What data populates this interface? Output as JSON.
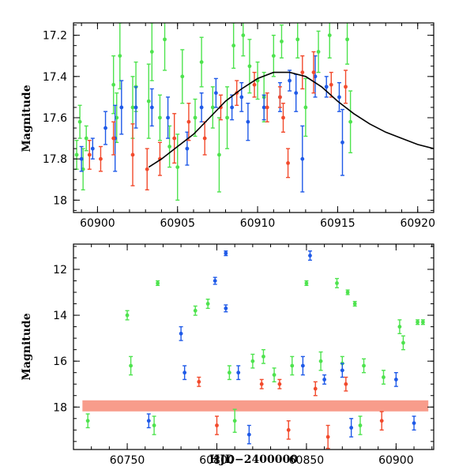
{
  "chart_data": [
    {
      "type": "scatter",
      "title": "",
      "xlabel": "",
      "ylabel": "Magnitude",
      "xlim": [
        60898.5,
        60921
      ],
      "ylim": [
        18.06,
        17.14
      ],
      "y_inverted": true,
      "grid": false,
      "x_ticks": [
        "60900",
        "60905",
        "60910",
        "60915",
        "60920"
      ],
      "y_ticks": [
        "17.2",
        "17.4",
        "17.6",
        "17.8",
        "18"
      ],
      "colors": {
        "green": "#4ee34e",
        "blue": "#1f5ae8",
        "red": "#f24a2c",
        "fit": "#000000"
      },
      "series": [
        {
          "color": "green",
          "points": [
            [
              60898.7,
              17.78,
              0.07
            ],
            [
              60898.9,
              17.62,
              0.08
            ],
            [
              60899.1,
              17.85,
              0.1
            ],
            [
              60899.3,
              17.7,
              0.06
            ],
            [
              60901.0,
              17.44,
              0.14
            ],
            [
              60901.2,
              17.6,
              0.12
            ],
            [
              60901.4,
              17.3,
              0.16
            ],
            [
              60902.2,
              17.55,
              0.15
            ],
            [
              60902.4,
              17.45,
              0.12
            ],
            [
              60903.2,
              17.52,
              0.18
            ],
            [
              60903.4,
              17.28,
              0.14
            ],
            [
              60903.9,
              17.6,
              0.11
            ],
            [
              60904.2,
              17.22,
              0.15
            ],
            [
              60904.5,
              17.74,
              0.1
            ],
            [
              60905.0,
              17.84,
              0.16
            ],
            [
              60905.3,
              17.4,
              0.13
            ],
            [
              60906.1,
              17.6,
              0.09
            ],
            [
              60906.5,
              17.33,
              0.12
            ],
            [
              60907.2,
              17.55,
              0.1
            ],
            [
              60907.6,
              17.78,
              0.18
            ],
            [
              60908.1,
              17.6,
              0.15
            ],
            [
              60908.5,
              17.25,
              0.11
            ],
            [
              60909.1,
              17.2,
              0.1
            ],
            [
              60909.5,
              17.35,
              0.13
            ],
            [
              60910.0,
              17.42,
              0.09
            ],
            [
              60910.4,
              17.5,
              0.12
            ],
            [
              60911.0,
              17.3,
              0.1
            ],
            [
              60911.5,
              17.23,
              0.08
            ],
            [
              60912.5,
              17.22,
              0.09
            ],
            [
              60913.0,
              17.55,
              0.14
            ],
            [
              60913.8,
              17.28,
              0.1
            ],
            [
              60914.5,
              17.2,
              0.11
            ],
            [
              60915.6,
              17.22,
              0.12
            ],
            [
              60915.8,
              17.62,
              0.15
            ]
          ]
        },
        {
          "color": "blue",
          "points": [
            [
              60899.0,
              17.8,
              0.06
            ],
            [
              60899.7,
              17.75,
              0.05
            ],
            [
              60900.5,
              17.65,
              0.08
            ],
            [
              60901.1,
              17.7,
              0.16
            ],
            [
              60901.5,
              17.55,
              0.13
            ],
            [
              60902.4,
              17.55,
              0.1
            ],
            [
              60903.4,
              17.55,
              0.09
            ],
            [
              60904.4,
              17.6,
              0.1
            ],
            [
              60905.6,
              17.75,
              0.08
            ],
            [
              60906.5,
              17.55,
              0.07
            ],
            [
              60907.4,
              17.48,
              0.07
            ],
            [
              60908.4,
              17.55,
              0.06
            ],
            [
              60909.0,
              17.5,
              0.07
            ],
            [
              60909.4,
              17.62,
              0.09
            ],
            [
              60910.4,
              17.55,
              0.06
            ],
            [
              60911.4,
              17.5,
              0.07
            ],
            [
              60912.0,
              17.42,
              0.05
            ],
            [
              60912.4,
              17.48,
              0.09
            ],
            [
              60912.8,
              17.8,
              0.16
            ],
            [
              60913.6,
              17.4,
              0.1
            ],
            [
              60914.3,
              17.45,
              0.05
            ],
            [
              60915.1,
              17.5,
              0.07
            ],
            [
              60915.3,
              17.72,
              0.16
            ]
          ]
        },
        {
          "color": "red",
          "points": [
            [
              60899.5,
              17.78,
              0.07
            ],
            [
              60900.2,
              17.8,
              0.06
            ],
            [
              60901.0,
              17.7,
              0.08
            ],
            [
              60902.2,
              17.78,
              0.15
            ],
            [
              60903.1,
              17.85,
              0.1
            ],
            [
              60903.9,
              17.8,
              0.08
            ],
            [
              60904.8,
              17.7,
              0.12
            ],
            [
              60905.7,
              17.62,
              0.09
            ],
            [
              60906.7,
              17.7,
              0.08
            ],
            [
              60907.7,
              17.55,
              0.06
            ],
            [
              60908.7,
              17.48,
              0.06
            ],
            [
              60909.8,
              17.44,
              0.06
            ],
            [
              60910.6,
              17.55,
              0.07
            ],
            [
              60911.4,
              17.5,
              0.05
            ],
            [
              60911.6,
              17.6,
              0.07
            ],
            [
              60911.9,
              17.82,
              0.07
            ],
            [
              60912.8,
              17.38,
              0.08
            ],
            [
              60913.5,
              17.38,
              0.1
            ],
            [
              60914.6,
              17.44,
              0.06
            ],
            [
              60915.5,
              17.45,
              0.08
            ]
          ]
        }
      ],
      "fit_curve": [
        [
          60903.2,
          17.84
        ],
        [
          60904,
          17.8
        ],
        [
          60905,
          17.74
        ],
        [
          60906,
          17.68
        ],
        [
          60907,
          17.6
        ],
        [
          60908,
          17.52
        ],
        [
          60909,
          17.46
        ],
        [
          60910,
          17.41
        ],
        [
          60911,
          17.38
        ],
        [
          60912,
          17.38
        ],
        [
          60913,
          17.4
        ],
        [
          60914,
          17.45
        ],
        [
          60915,
          17.52
        ],
        [
          60916,
          17.58
        ],
        [
          60917,
          17.63
        ],
        [
          60918,
          17.67
        ],
        [
          60919,
          17.7
        ],
        [
          60920,
          17.73
        ],
        [
          60921,
          17.75
        ]
      ]
    },
    {
      "type": "scatter",
      "title": "",
      "xlabel": "HJD−2400000",
      "ylabel": "Magnitude",
      "xlim": [
        60720,
        60921
      ],
      "ylim": [
        19.85,
        10.9
      ],
      "y_inverted": true,
      "grid": false,
      "x_ticks": [
        "60750",
        "60800",
        "60850",
        "60900"
      ],
      "y_ticks": [
        "12",
        "14",
        "16",
        "18"
      ],
      "colors": {
        "green": "#4ee34e",
        "blue": "#1f5ae8",
        "red": "#f24a2c"
      },
      "series": [
        {
          "color": "green",
          "points": [
            [
              60750,
              14.0,
              0.2
            ],
            [
              60752,
              16.2,
              0.4
            ],
            [
              60767,
              12.6,
              0.1
            ],
            [
              60788,
              13.8,
              0.2
            ],
            [
              60795,
              13.5,
              0.2
            ],
            [
              60807,
              16.5,
              0.3
            ],
            [
              60820,
              16.0,
              0.3
            ],
            [
              60826,
              15.8,
              0.3
            ],
            [
              60832,
              16.6,
              0.3
            ],
            [
              60842,
              16.2,
              0.4
            ],
            [
              60850,
              12.6,
              0.1
            ],
            [
              60858,
              16.0,
              0.4
            ],
            [
              60867,
              12.6,
              0.2
            ],
            [
              60870,
              16.1,
              0.3
            ],
            [
              60873,
              13.0,
              0.1
            ],
            [
              60877,
              13.5,
              0.1
            ],
            [
              60882,
              16.2,
              0.3
            ],
            [
              60893,
              16.7,
              0.3
            ],
            [
              60902,
              14.5,
              0.3
            ],
            [
              60904,
              15.2,
              0.3
            ],
            [
              60912,
              14.3,
              0.1
            ],
            [
              60915,
              14.3,
              0.1
            ],
            [
              60728,
              18.6,
              0.3
            ],
            [
              60765,
              18.8,
              0.4
            ],
            [
              60810,
              18.6,
              0.5
            ],
            [
              60880,
              18.8,
              0.4
            ]
          ]
        },
        {
          "color": "blue",
          "points": [
            [
              60799,
              12.5,
              0.15
            ],
            [
              60805,
              11.3,
              0.1
            ],
            [
              60780,
              14.8,
              0.3
            ],
            [
              60805,
              13.7,
              0.15
            ],
            [
              60852,
              11.4,
              0.2
            ],
            [
              60860,
              16.8,
              0.2
            ],
            [
              60782,
              16.5,
              0.3
            ],
            [
              60812,
              16.5,
              0.3
            ],
            [
              60848,
              16.2,
              0.4
            ],
            [
              60870,
              16.4,
              0.3
            ],
            [
              60900,
              16.8,
              0.3
            ],
            [
              60762,
              18.6,
              0.3
            ],
            [
              60818,
              19.2,
              0.4
            ],
            [
              60875,
              18.9,
              0.4
            ],
            [
              60910,
              18.7,
              0.3
            ]
          ]
        },
        {
          "color": "red",
          "points": [
            [
              60790,
              16.9,
              0.2
            ],
            [
              60825,
              17.0,
              0.2
            ],
            [
              60835,
              17.0,
              0.2
            ],
            [
              60855,
              17.2,
              0.3
            ],
            [
              60872,
              17.0,
              0.3
            ],
            [
              60800,
              18.8,
              0.4
            ],
            [
              60840,
              19.0,
              0.4
            ],
            [
              60862,
              19.3,
              0.5
            ],
            [
              60892,
              18.6,
              0.4
            ]
          ]
        }
      ],
      "baseline": {
        "from": 60725,
        "to": 60918,
        "magnitude": 17.95
      }
    }
  ]
}
